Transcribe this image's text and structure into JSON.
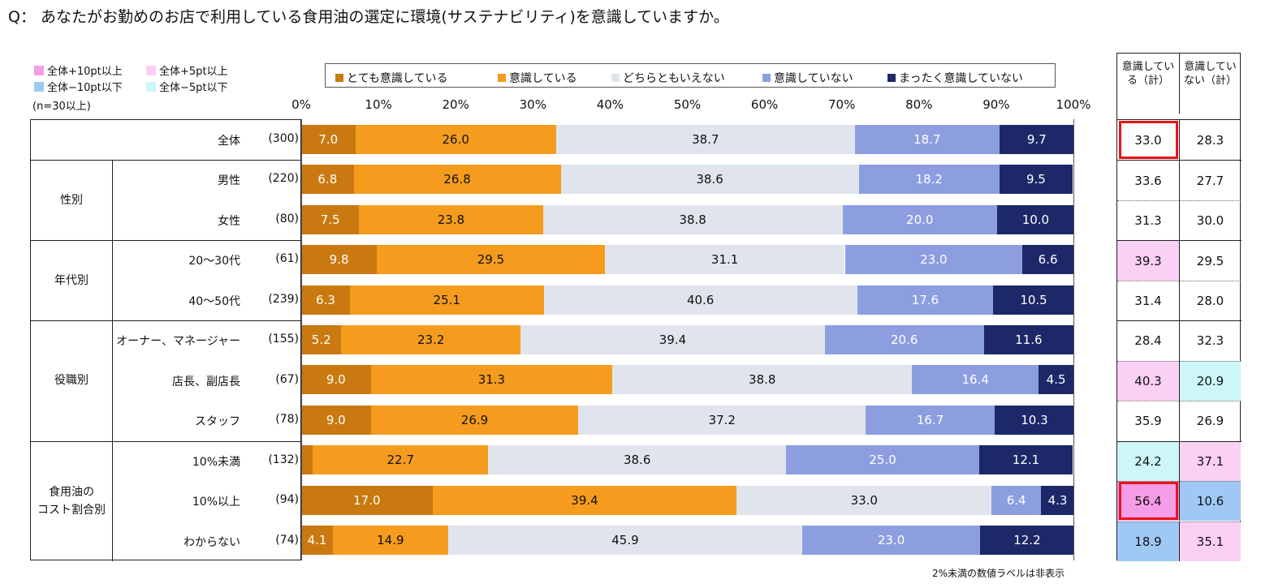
{
  "title": "Q： あなたがお勤めのお店で利用している食用油の選定に環境(サステナビリティ)を意識していますか。",
  "highlight_legend": {
    "items": [
      {
        "label": "全体+10pt以上",
        "color": "#f59de8"
      },
      {
        "label": "全体+5pt以上",
        "color": "#fbd0f5"
      },
      {
        "label": "全体−10pt以下",
        "color": "#9fc9f4"
      },
      {
        "label": "全体−5pt以下",
        "color": "#ccf6f7"
      }
    ],
    "note": "(n=30以上)"
  },
  "sum_headers": [
    "意識している（計）",
    "意識していない（計）"
  ],
  "footnote": "2%未満の数値ラベルは非表示",
  "chart_data": {
    "type": "stacked-bar-horizontal",
    "title": "あなたがお勤めのお店で利用している食用油の選定に環境(サステナビリティ)を意識していますか。",
    "xlim": [
      0,
      100
    ],
    "ticks": [
      "0%",
      "10%",
      "20%",
      "30%",
      "40%",
      "50%",
      "60%",
      "70%",
      "80%",
      "90%",
      "100%"
    ],
    "series": [
      {
        "name": "とても意識している",
        "color": "#c97910",
        "text": "#ffffff"
      },
      {
        "name": "意識している",
        "color": "#f59c1e",
        "text": "#111111"
      },
      {
        "name": "どちらともいえない",
        "color": "#e0e5ed",
        "text": "#111111"
      },
      {
        "name": "意識していない",
        "color": "#8c9ee0",
        "text": "#ffffff"
      },
      {
        "name": "まったく意識していない",
        "color": "#1c2868",
        "text": "#ffffff"
      }
    ],
    "groups": [
      {
        "name": "",
        "rows": [
          0
        ]
      },
      {
        "name": "性別",
        "rows": [
          1,
          2
        ]
      },
      {
        "name": "年代別",
        "rows": [
          3,
          4
        ]
      },
      {
        "name": "役職別",
        "rows": [
          5,
          6,
          7
        ]
      },
      {
        "name": "食用油の\nコスト割合別",
        "rows": [
          8,
          9,
          10
        ]
      }
    ],
    "rows": [
      {
        "label": "全体",
        "n": "(300)",
        "values": [
          7.0,
          26.0,
          38.7,
          18.7,
          9.7
        ],
        "labels": [
          "7.0",
          "26.0",
          "38.7",
          "18.7",
          "9.7"
        ],
        "aware": "33.0",
        "unaware": "28.3",
        "aware_bg": "",
        "unaware_bg": "",
        "aware_box": true
      },
      {
        "label": "男性",
        "n": "(220)",
        "values": [
          6.8,
          26.8,
          38.6,
          18.2,
          9.5
        ],
        "labels": [
          "6.8",
          "26.8",
          "38.6",
          "18.2",
          "9.5"
        ],
        "aware": "33.6",
        "unaware": "27.7",
        "aware_bg": "",
        "unaware_bg": ""
      },
      {
        "label": "女性",
        "n": "(80)",
        "values": [
          7.5,
          23.8,
          38.8,
          20.0,
          10.0
        ],
        "labels": [
          "7.5",
          "23.8",
          "38.8",
          "20.0",
          "10.0"
        ],
        "aware": "31.3",
        "unaware": "30.0",
        "aware_bg": "",
        "unaware_bg": ""
      },
      {
        "label": "20～30代",
        "n": "(61)",
        "values": [
          9.8,
          29.5,
          31.1,
          23.0,
          6.6
        ],
        "labels": [
          "9.8",
          "29.5",
          "31.1",
          "23.0",
          "6.6"
        ],
        "aware": "39.3",
        "unaware": "29.5",
        "aware_bg": "#fbd0f5",
        "unaware_bg": ""
      },
      {
        "label": "40～50代",
        "n": "(239)",
        "values": [
          6.3,
          25.1,
          40.6,
          17.6,
          10.5
        ],
        "labels": [
          "6.3",
          "25.1",
          "40.6",
          "17.6",
          "10.5"
        ],
        "aware": "31.4",
        "unaware": "28.0",
        "aware_bg": "",
        "unaware_bg": ""
      },
      {
        "label": "オーナー、マネージャー",
        "n": "(155)",
        "values": [
          5.2,
          23.2,
          39.4,
          20.6,
          11.6
        ],
        "labels": [
          "5.2",
          "23.2",
          "39.4",
          "20.6",
          "11.6"
        ],
        "aware": "28.4",
        "unaware": "32.3",
        "aware_bg": "",
        "unaware_bg": ""
      },
      {
        "label": "店長、副店長",
        "n": "(67)",
        "values": [
          9.0,
          31.3,
          38.8,
          16.4,
          4.5
        ],
        "labels": [
          "9.0",
          "31.3",
          "38.8",
          "16.4",
          "4.5"
        ],
        "aware": "40.3",
        "unaware": "20.9",
        "aware_bg": "#fbd0f5",
        "unaware_bg": "#ccf6f7"
      },
      {
        "label": "スタッフ",
        "n": "(78)",
        "values": [
          9.0,
          26.9,
          37.2,
          16.7,
          10.3
        ],
        "labels": [
          "9.0",
          "26.9",
          "37.2",
          "16.7",
          "10.3"
        ],
        "aware": "35.9",
        "unaware": "26.9",
        "aware_bg": "",
        "unaware_bg": ""
      },
      {
        "label": "10%未満",
        "n": "(132)",
        "values": [
          1.5,
          22.7,
          38.6,
          25.0,
          12.1
        ],
        "labels": [
          "",
          "22.7",
          "38.6",
          "25.0",
          "12.1"
        ],
        "aware": "24.2",
        "unaware": "37.1",
        "aware_bg": "#ccf6f7",
        "unaware_bg": "#fbd0f5"
      },
      {
        "label": "10%以上",
        "n": "(94)",
        "values": [
          17.0,
          39.4,
          33.0,
          6.4,
          4.3
        ],
        "labels": [
          "17.0",
          "39.4",
          "33.0",
          "6.4",
          "4.3"
        ],
        "aware": "56.4",
        "unaware": "10.6",
        "aware_bg": "#f59de8",
        "unaware_bg": "#9fc9f4",
        "aware_box": true
      },
      {
        "label": "わからない",
        "n": "(74)",
        "values": [
          4.1,
          14.9,
          45.9,
          23.0,
          12.2
        ],
        "labels": [
          "4.1",
          "14.9",
          "45.9",
          "23.0",
          "12.2"
        ],
        "aware": "18.9",
        "unaware": "35.1",
        "aware_bg": "#9fc9f4",
        "unaware_bg": "#fbd0f5"
      }
    ]
  }
}
